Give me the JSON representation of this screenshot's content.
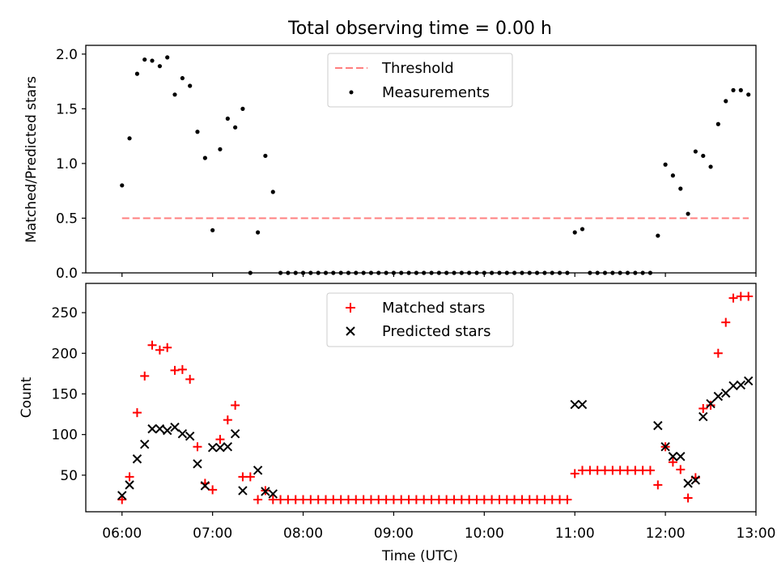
{
  "title": "Total observing time = 0.00 h",
  "chart_data": [
    {
      "type": "scatter",
      "panel": "top",
      "ylabel": "Matched/Predicted stars",
      "xlim_hours": [
        5.6,
        13.0
      ],
      "ylim": [
        0,
        2.08
      ],
      "yticks": [
        "0.0",
        "0.5",
        "1.0",
        "1.5",
        "2.0"
      ],
      "grid": false,
      "legend_position": "upper-center",
      "threshold": {
        "name": "Threshold",
        "value": 0.5,
        "x_range_hours": [
          6.0,
          12.92
        ],
        "color": "#ff7f7f",
        "style": "dashed"
      },
      "series": [
        {
          "name": "Measurements",
          "color": "#000000",
          "marker": "dot",
          "x_hours": [
            6.0,
            6.083,
            6.167,
            6.25,
            6.333,
            6.417,
            6.5,
            6.583,
            6.667,
            6.75,
            6.833,
            6.917,
            7.0,
            7.083,
            7.167,
            7.25,
            7.333,
            7.417,
            7.5,
            7.583,
            7.667,
            7.75,
            7.833,
            7.917,
            8.0,
            8.083,
            8.167,
            8.25,
            8.333,
            8.417,
            8.5,
            8.583,
            8.667,
            8.75,
            8.833,
            8.917,
            9.0,
            9.083,
            9.167,
            9.25,
            9.333,
            9.417,
            9.5,
            9.583,
            9.667,
            9.75,
            9.833,
            9.917,
            10.0,
            10.083,
            10.167,
            10.25,
            10.333,
            10.417,
            10.5,
            10.583,
            10.667,
            10.75,
            10.833,
            10.917,
            11.0,
            11.083,
            11.167,
            11.25,
            11.333,
            11.417,
            11.5,
            11.583,
            11.667,
            11.75,
            11.833,
            11.917,
            12.0,
            12.083,
            12.167,
            12.25,
            12.333,
            12.417,
            12.5,
            12.583,
            12.667,
            12.75,
            12.833,
            12.917
          ],
          "y": [
            0.8,
            1.23,
            1.82,
            1.95,
            1.94,
            1.89,
            1.97,
            1.63,
            1.78,
            1.71,
            1.29,
            1.05,
            0.39,
            1.13,
            1.41,
            1.33,
            1.5,
            0.0,
            0.37,
            1.07,
            0.74,
            0.0,
            0.0,
            0.0,
            0.0,
            0.0,
            0.0,
            0.0,
            0.0,
            0.0,
            0.0,
            0.0,
            0.0,
            0.0,
            0.0,
            0.0,
            0.0,
            0.0,
            0.0,
            0.0,
            0.0,
            0.0,
            0.0,
            0.0,
            0.0,
            0.0,
            0.0,
            0.0,
            0.0,
            0.0,
            0.0,
            0.0,
            0.0,
            0.0,
            0.0,
            0.0,
            0.0,
            0.0,
            0.0,
            0.0,
            0.37,
            0.4,
            0.0,
            0.0,
            0.0,
            0.0,
            0.0,
            0.0,
            0.0,
            0.0,
            0.0,
            0.34,
            0.99,
            0.89,
            0.77,
            0.54,
            1.11,
            1.07,
            0.97,
            1.36,
            1.57,
            1.67,
            1.67,
            1.63
          ]
        }
      ]
    },
    {
      "type": "scatter",
      "panel": "bottom",
      "xlabel": "Time (UTC)",
      "ylabel": "Count",
      "xlim_hours": [
        5.6,
        13.0
      ],
      "ylim": [
        5,
        286
      ],
      "xticks": [
        "06:00",
        "07:00",
        "08:00",
        "09:00",
        "10:00",
        "11:00",
        "12:00",
        "13:00"
      ],
      "yticks": [
        "50",
        "100",
        "150",
        "200",
        "250"
      ],
      "grid": false,
      "legend_position": "upper-center",
      "series": [
        {
          "name": "Matched stars",
          "color": "#ff0000",
          "marker": "plus",
          "x_hours": [
            6.0,
            6.083,
            6.167,
            6.25,
            6.333,
            6.417,
            6.5,
            6.583,
            6.667,
            6.75,
            6.833,
            6.917,
            7.0,
            7.083,
            7.167,
            7.25,
            7.333,
            7.417,
            7.5,
            7.583,
            7.667,
            7.75,
            7.833,
            7.917,
            8.0,
            8.083,
            8.167,
            8.25,
            8.333,
            8.417,
            8.5,
            8.583,
            8.667,
            8.75,
            8.833,
            8.917,
            9.0,
            9.083,
            9.167,
            9.25,
            9.333,
            9.417,
            9.5,
            9.583,
            9.667,
            9.75,
            9.833,
            9.917,
            10.0,
            10.083,
            10.167,
            10.25,
            10.333,
            10.417,
            10.5,
            10.583,
            10.667,
            10.75,
            10.833,
            10.917,
            11.0,
            11.083,
            11.167,
            11.25,
            11.333,
            11.417,
            11.5,
            11.583,
            11.667,
            11.75,
            11.833,
            11.917,
            12.0,
            12.083,
            12.167,
            12.25,
            12.333,
            12.417,
            12.5,
            12.583,
            12.667,
            12.75,
            12.833,
            12.917
          ],
          "y": [
            20,
            48,
            127,
            172,
            210,
            204,
            207,
            179,
            180,
            168,
            85,
            40,
            32,
            94,
            118,
            136,
            48,
            48,
            20,
            31,
            20,
            20,
            20,
            20,
            20,
            20,
            20,
            20,
            20,
            20,
            20,
            20,
            20,
            20,
            20,
            20,
            20,
            20,
            20,
            20,
            20,
            20,
            20,
            20,
            20,
            20,
            20,
            20,
            20,
            20,
            20,
            20,
            20,
            20,
            20,
            20,
            20,
            20,
            20,
            20,
            52,
            56,
            56,
            56,
            56,
            56,
            56,
            56,
            56,
            56,
            56,
            38,
            85,
            66,
            57,
            22,
            47,
            132,
            136,
            200,
            238,
            268,
            270,
            270
          ]
        },
        {
          "name": "Predicted stars",
          "color": "#000000",
          "marker": "x",
          "x_hours": [
            6.0,
            6.083,
            6.167,
            6.25,
            6.333,
            6.417,
            6.5,
            6.583,
            6.667,
            6.75,
            6.833,
            6.917,
            7.0,
            7.083,
            7.167,
            7.25,
            7.333,
            7.5,
            7.583,
            7.667,
            11.0,
            11.083,
            11.917,
            12.0,
            12.083,
            12.167,
            12.25,
            12.333,
            12.417,
            12.5,
            12.583,
            12.667,
            12.75,
            12.833,
            12.917
          ],
          "y": [
            25,
            38,
            70,
            88,
            107,
            107,
            105,
            109,
            101,
            98,
            64,
            37,
            84,
            84,
            85,
            101,
            31,
            56,
            30,
            27,
            137,
            137,
            111,
            85,
            73,
            73,
            40,
            44,
            122,
            138,
            147,
            151,
            160,
            161,
            166
          ]
        }
      ]
    }
  ]
}
